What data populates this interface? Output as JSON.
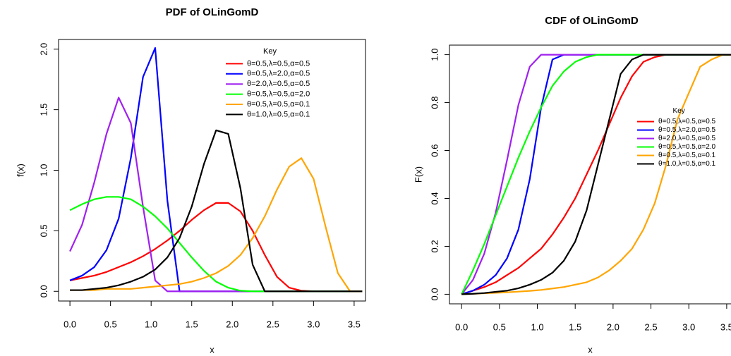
{
  "chart_data": [
    {
      "type": "line",
      "title": "PDF of OLinGomD",
      "x_label": "x",
      "y_label": "f(x)",
      "legend_title": "Key",
      "legend": "top-right",
      "x": [
        0,
        0.15,
        0.3,
        0.45,
        0.6,
        0.75,
        0.9,
        1.05,
        1.2,
        1.35,
        1.5,
        1.65,
        1.8,
        1.95,
        2.1,
        2.25,
        2.4,
        2.55,
        2.7,
        2.85,
        3,
        3.15,
        3.3,
        3.45,
        3.6
      ],
      "xlim": [
        -0.14,
        3.64
      ],
      "ylim": [
        -0.08,
        2.08
      ],
      "xticks": [
        {
          "value": 0,
          "label": "0.0"
        },
        0.5,
        {
          "value": 1,
          "label": "1.0"
        },
        1.5,
        {
          "value": 2,
          "label": "2.0"
        },
        2.5,
        {
          "value": 3,
          "label": "3.0"
        },
        3.5
      ],
      "yticks": [
        {
          "value": 0,
          "label": "0.0"
        },
        0.5,
        {
          "value": 1,
          "label": "1.0"
        },
        1.5,
        {
          "value": 2,
          "label": "2.0"
        }
      ],
      "series": [
        {
          "name": "θ=0.5,λ=0.5,α=0.5",
          "color": "#ff0000",
          "values": [
            0.09,
            0.11,
            0.13,
            0.16,
            0.2,
            0.24,
            0.29,
            0.35,
            0.42,
            0.5,
            0.59,
            0.67,
            0.73,
            0.73,
            0.66,
            0.5,
            0.3,
            0.12,
            0.03,
            0.005,
            0,
            0,
            0,
            0,
            0
          ]
        },
        {
          "name": "θ=0.5,λ=2.0,α=0.5",
          "color": "#0000ff",
          "values": [
            0.09,
            0.13,
            0.2,
            0.34,
            0.6,
            1.1,
            1.77,
            2.01,
            0.75,
            0,
            0,
            0,
            0,
            0,
            0,
            0,
            0,
            0,
            0,
            0,
            0,
            0,
            0,
            0,
            0
          ]
        },
        {
          "name": "θ=2.0,λ=0.5,α=0.5",
          "color": "#a020f0",
          "values": [
            0.33,
            0.55,
            0.9,
            1.3,
            1.6,
            1.39,
            0.7,
            0.09,
            0,
            0,
            0,
            0,
            0,
            0,
            0,
            0,
            0,
            0,
            0,
            0,
            0,
            0,
            0,
            0,
            0
          ]
        },
        {
          "name": "θ=0.5,λ=0.5,α=2.0",
          "color": "#00ff00",
          "values": [
            0.67,
            0.72,
            0.76,
            0.78,
            0.78,
            0.76,
            0.7,
            0.62,
            0.52,
            0.4,
            0.28,
            0.17,
            0.08,
            0.03,
            0.005,
            0,
            0,
            0,
            0,
            0,
            0,
            0,
            0,
            0,
            0
          ]
        },
        {
          "name": "θ=0.5,λ=0.5,α=0.1",
          "color": "#ffa500",
          "values": [
            0.01,
            0.01,
            0.01,
            0.02,
            0.02,
            0.02,
            0.03,
            0.04,
            0.05,
            0.06,
            0.08,
            0.11,
            0.15,
            0.21,
            0.3,
            0.44,
            0.62,
            0.84,
            1.03,
            1.1,
            0.93,
            0.53,
            0.15,
            0,
            0
          ]
        },
        {
          "name": "θ=1.0,λ=0.5,α=0.1",
          "color": "#000000",
          "values": [
            0.01,
            0.01,
            0.02,
            0.03,
            0.05,
            0.08,
            0.12,
            0.18,
            0.28,
            0.44,
            0.7,
            1.05,
            1.33,
            1.3,
            0.85,
            0.22,
            0,
            0,
            0,
            0,
            0,
            0,
            0,
            0,
            0
          ]
        }
      ]
    },
    {
      "type": "line",
      "title": "CDF of OLinGomD",
      "x_label": "x",
      "y_label": "F(x)",
      "legend_title": "Key",
      "legend": "right",
      "x": [
        0,
        0.15,
        0.3,
        0.45,
        0.6,
        0.75,
        0.9,
        1.05,
        1.2,
        1.35,
        1.5,
        1.65,
        1.8,
        1.95,
        2.1,
        2.25,
        2.4,
        2.55,
        2.7,
        2.85,
        3,
        3.15,
        3.3,
        3.45,
        3.6
      ],
      "xlim": [
        -0.16,
        3.65
      ],
      "ylim": [
        -0.04,
        1.04
      ],
      "xticks": [
        {
          "value": 0,
          "label": "0.0"
        },
        0.5,
        {
          "value": 1,
          "label": "1.0"
        },
        1.5,
        {
          "value": 2,
          "label": "2.0"
        },
        2.5,
        {
          "value": 3,
          "label": "3.0"
        },
        3.5
      ],
      "yticks": [
        {
          "value": 0,
          "label": "0.0"
        },
        0.2,
        0.4,
        0.6,
        0.8,
        {
          "value": 1,
          "label": "1.0"
        }
      ],
      "series": [
        {
          "name": "θ=0.5,λ=0.5,α=0.5",
          "color": "#ff0000",
          "values": [
            0,
            0.015,
            0.03,
            0.05,
            0.08,
            0.11,
            0.15,
            0.19,
            0.25,
            0.32,
            0.4,
            0.5,
            0.6,
            0.71,
            0.82,
            0.91,
            0.97,
            0.99,
            1,
            1,
            1,
            1,
            1,
            1,
            1
          ]
        },
        {
          "name": "θ=0.5,λ=2.0,α=0.5",
          "color": "#0000ff",
          "values": [
            0,
            0.015,
            0.04,
            0.08,
            0.15,
            0.27,
            0.48,
            0.78,
            0.98,
            1,
            1,
            1,
            1,
            1,
            1,
            1,
            1,
            1,
            1,
            1,
            1,
            1,
            1,
            1,
            1
          ]
        },
        {
          "name": "θ=2.0,λ=0.5,α=0.5",
          "color": "#a020f0",
          "values": [
            0,
            0.06,
            0.17,
            0.34,
            0.56,
            0.79,
            0.95,
            1,
            1,
            1,
            1,
            1,
            1,
            1,
            1,
            1,
            1,
            1,
            1,
            1,
            1,
            1,
            1,
            1,
            1
          ]
        },
        {
          "name": "θ=0.5,λ=0.5,α=2.0",
          "color": "#00ff00",
          "values": [
            0,
            0.1,
            0.21,
            0.33,
            0.45,
            0.57,
            0.68,
            0.78,
            0.87,
            0.93,
            0.97,
            0.99,
            1,
            1,
            1,
            1,
            1,
            1,
            1,
            1,
            1,
            1,
            1,
            1,
            1
          ]
        },
        {
          "name": "θ=0.5,λ=0.5,α=0.1",
          "color": "#ffa500",
          "values": [
            0,
            0.002,
            0.004,
            0.006,
            0.008,
            0.011,
            0.014,
            0.018,
            0.024,
            0.03,
            0.04,
            0.05,
            0.07,
            0.1,
            0.14,
            0.19,
            0.27,
            0.38,
            0.54,
            0.73,
            0.84,
            0.95,
            0.98,
            1,
            1
          ]
        },
        {
          "name": "θ=1.0,λ=0.5,α=0.1",
          "color": "#000000",
          "values": [
            0,
            0.002,
            0.005,
            0.01,
            0.015,
            0.025,
            0.04,
            0.06,
            0.09,
            0.14,
            0.22,
            0.35,
            0.54,
            0.73,
            0.92,
            0.98,
            1,
            1,
            1,
            1,
            1,
            1,
            1,
            1,
            1
          ]
        }
      ]
    }
  ]
}
